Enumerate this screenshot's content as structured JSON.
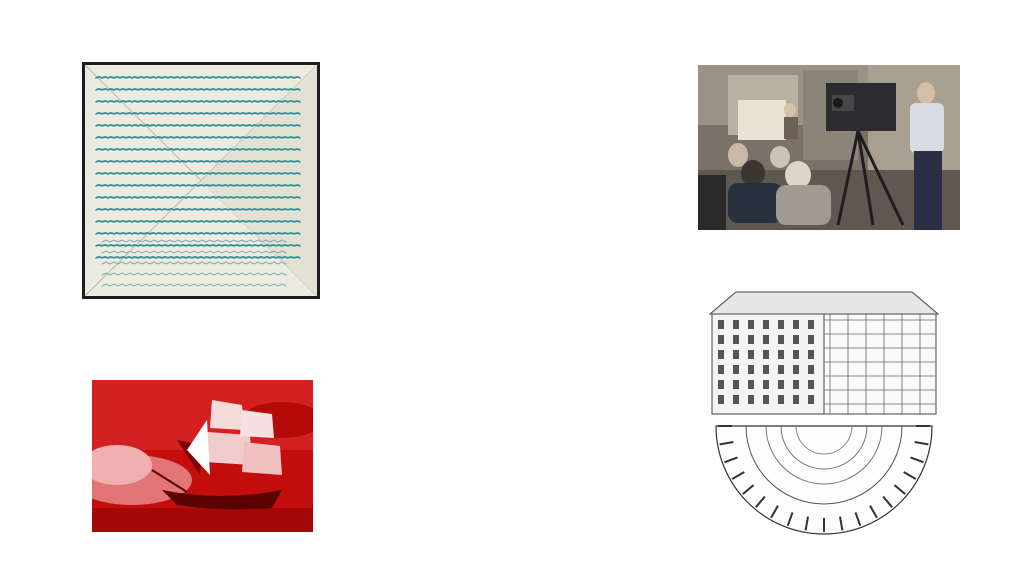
{
  "slide": {
    "background": "#ffffff",
    "images": [
      {
        "id": "letter",
        "icon": "handwritten-letter-envelope-image",
        "ink_color": "#2e8f95",
        "paper_color": "#ecebe0"
      },
      {
        "id": "studio",
        "icon": "tv-studio-camera-photo"
      },
      {
        "id": "ship",
        "icon": "red-tinted-sailing-ship-photo",
        "tint": "#c40d0d"
      },
      {
        "id": "panopticon",
        "icon": "panopticon-architectural-drawing"
      }
    ]
  }
}
